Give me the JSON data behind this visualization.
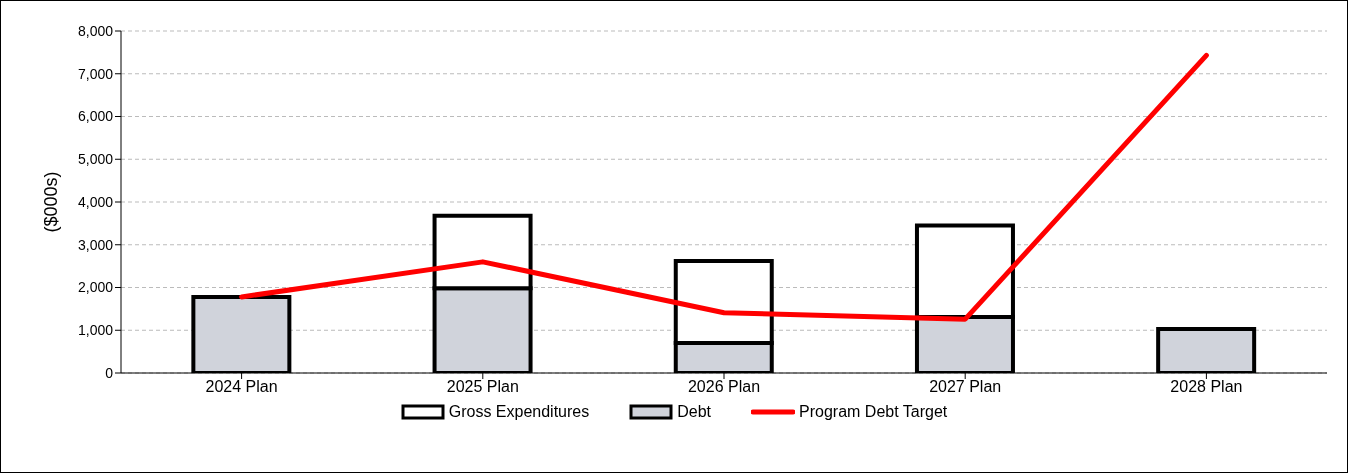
{
  "chart_data": {
    "type": "bar",
    "stacked": true,
    "ylabel": "($000s)",
    "categories": [
      "2024 Plan",
      "2025 Plan",
      "2026 Plan",
      "2027 Plan",
      "2028 Plan"
    ],
    "series": [
      {
        "name": "Debt",
        "color": "#d0d3db",
        "values": [
          1780,
          1980,
          700,
          1310,
          1030
        ]
      },
      {
        "name": "Gross Expenditures",
        "color": "#ffffff",
        "values": [
          0,
          1700,
          1920,
          2140,
          0
        ]
      },
      {
        "name": "Program Debt Target",
        "type": "line",
        "color": "#ff0000",
        "values": [
          1780,
          2600,
          1410,
          1260,
          7430
        ]
      }
    ],
    "ylim": [
      0,
      8000
    ],
    "yticks": [
      0,
      {
        "value": 1000,
        "label": "1,000"
      },
      {
        "value": 2000,
        "label": "2,000"
      },
      {
        "value": 3000,
        "label": "3,000"
      },
      {
        "value": 4000,
        "label": "4,000"
      },
      {
        "value": 5000,
        "label": "5,000"
      },
      {
        "value": 6000,
        "label": "6,000"
      },
      {
        "value": 7000,
        "label": "7,000"
      },
      {
        "value": 8000,
        "label": "8,000"
      }
    ],
    "grid": "y",
    "legend": "bottom",
    "marker": "none",
    "line_style": "solid"
  }
}
